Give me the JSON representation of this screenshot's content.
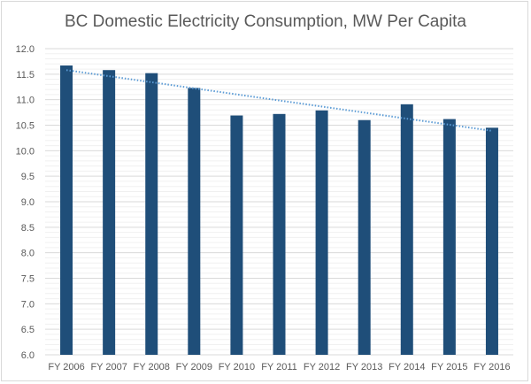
{
  "chart_data": {
    "type": "bar",
    "title": "BC Domestic Electricity Consumption, MW Per Capita",
    "xlabel": "",
    "ylabel": "",
    "categories": [
      "FY 2006",
      "FY 2007",
      "FY 2008",
      "FY 2009",
      "FY 2010",
      "FY 2011",
      "FY 2012",
      "FY 2013",
      "FY 2014",
      "FY 2015",
      "FY 2016"
    ],
    "values": [
      11.67,
      11.58,
      11.52,
      11.23,
      10.69,
      10.72,
      10.79,
      10.6,
      10.91,
      10.62,
      10.45
    ],
    "ylim": [
      6.0,
      12.0
    ],
    "yticks": [
      "6.0",
      "6.5",
      "7.0",
      "7.5",
      "8.0",
      "8.5",
      "9.0",
      "9.5",
      "10.0",
      "10.5",
      "11.0",
      "11.5",
      "12.0"
    ],
    "grid": true,
    "minor_grid": true,
    "trendline": {
      "type": "linear",
      "style": "dotted",
      "start": 11.58,
      "end": 10.39
    },
    "legend": "none",
    "colors": {
      "bar": "#1f4e79",
      "trendline": "#5b9bd5",
      "grid": "#d9d9d9"
    }
  }
}
